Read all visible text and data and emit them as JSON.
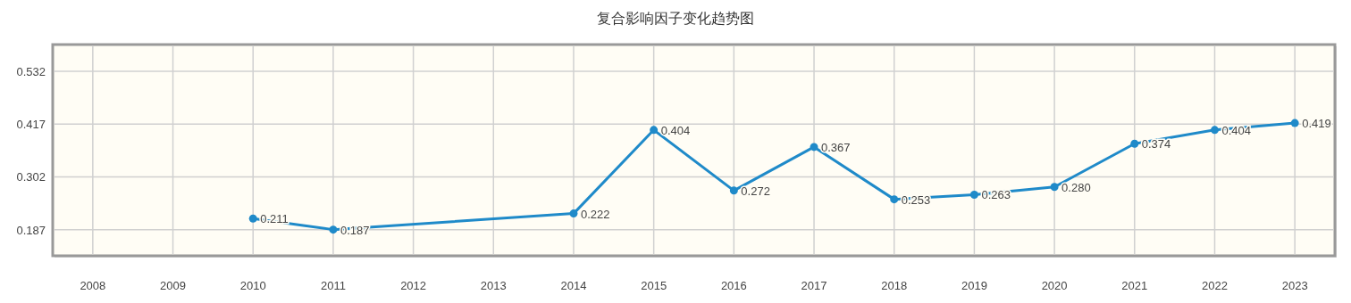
{
  "chart_data": {
    "type": "line",
    "title": "复合影响因子变化趋势图",
    "categories": [
      "2008",
      "2009",
      "2010",
      "2011",
      "2012",
      "2013",
      "2014",
      "2015",
      "2016",
      "2017",
      "2018",
      "2019",
      "2020",
      "2021",
      "2022",
      "2023"
    ],
    "values": [
      null,
      null,
      0.211,
      0.187,
      null,
      null,
      0.222,
      0.404,
      0.272,
      0.367,
      0.253,
      0.263,
      0.28,
      0.374,
      0.404,
      0.419
    ],
    "value_labels": [
      null,
      null,
      "0.211",
      "0.187",
      null,
      null,
      "0.222",
      "0.404",
      "0.272",
      "0.367",
      "0.253",
      "0.263",
      "0.280",
      "0.374",
      "0.404",
      "0.419"
    ],
    "color": "#1f8ac9",
    "ylim": [
      0.13,
      0.59
    ],
    "yticks": [
      0.187,
      0.302,
      0.417,
      0.532
    ],
    "grid": true,
    "marker": "circle",
    "line_style": "solid"
  }
}
